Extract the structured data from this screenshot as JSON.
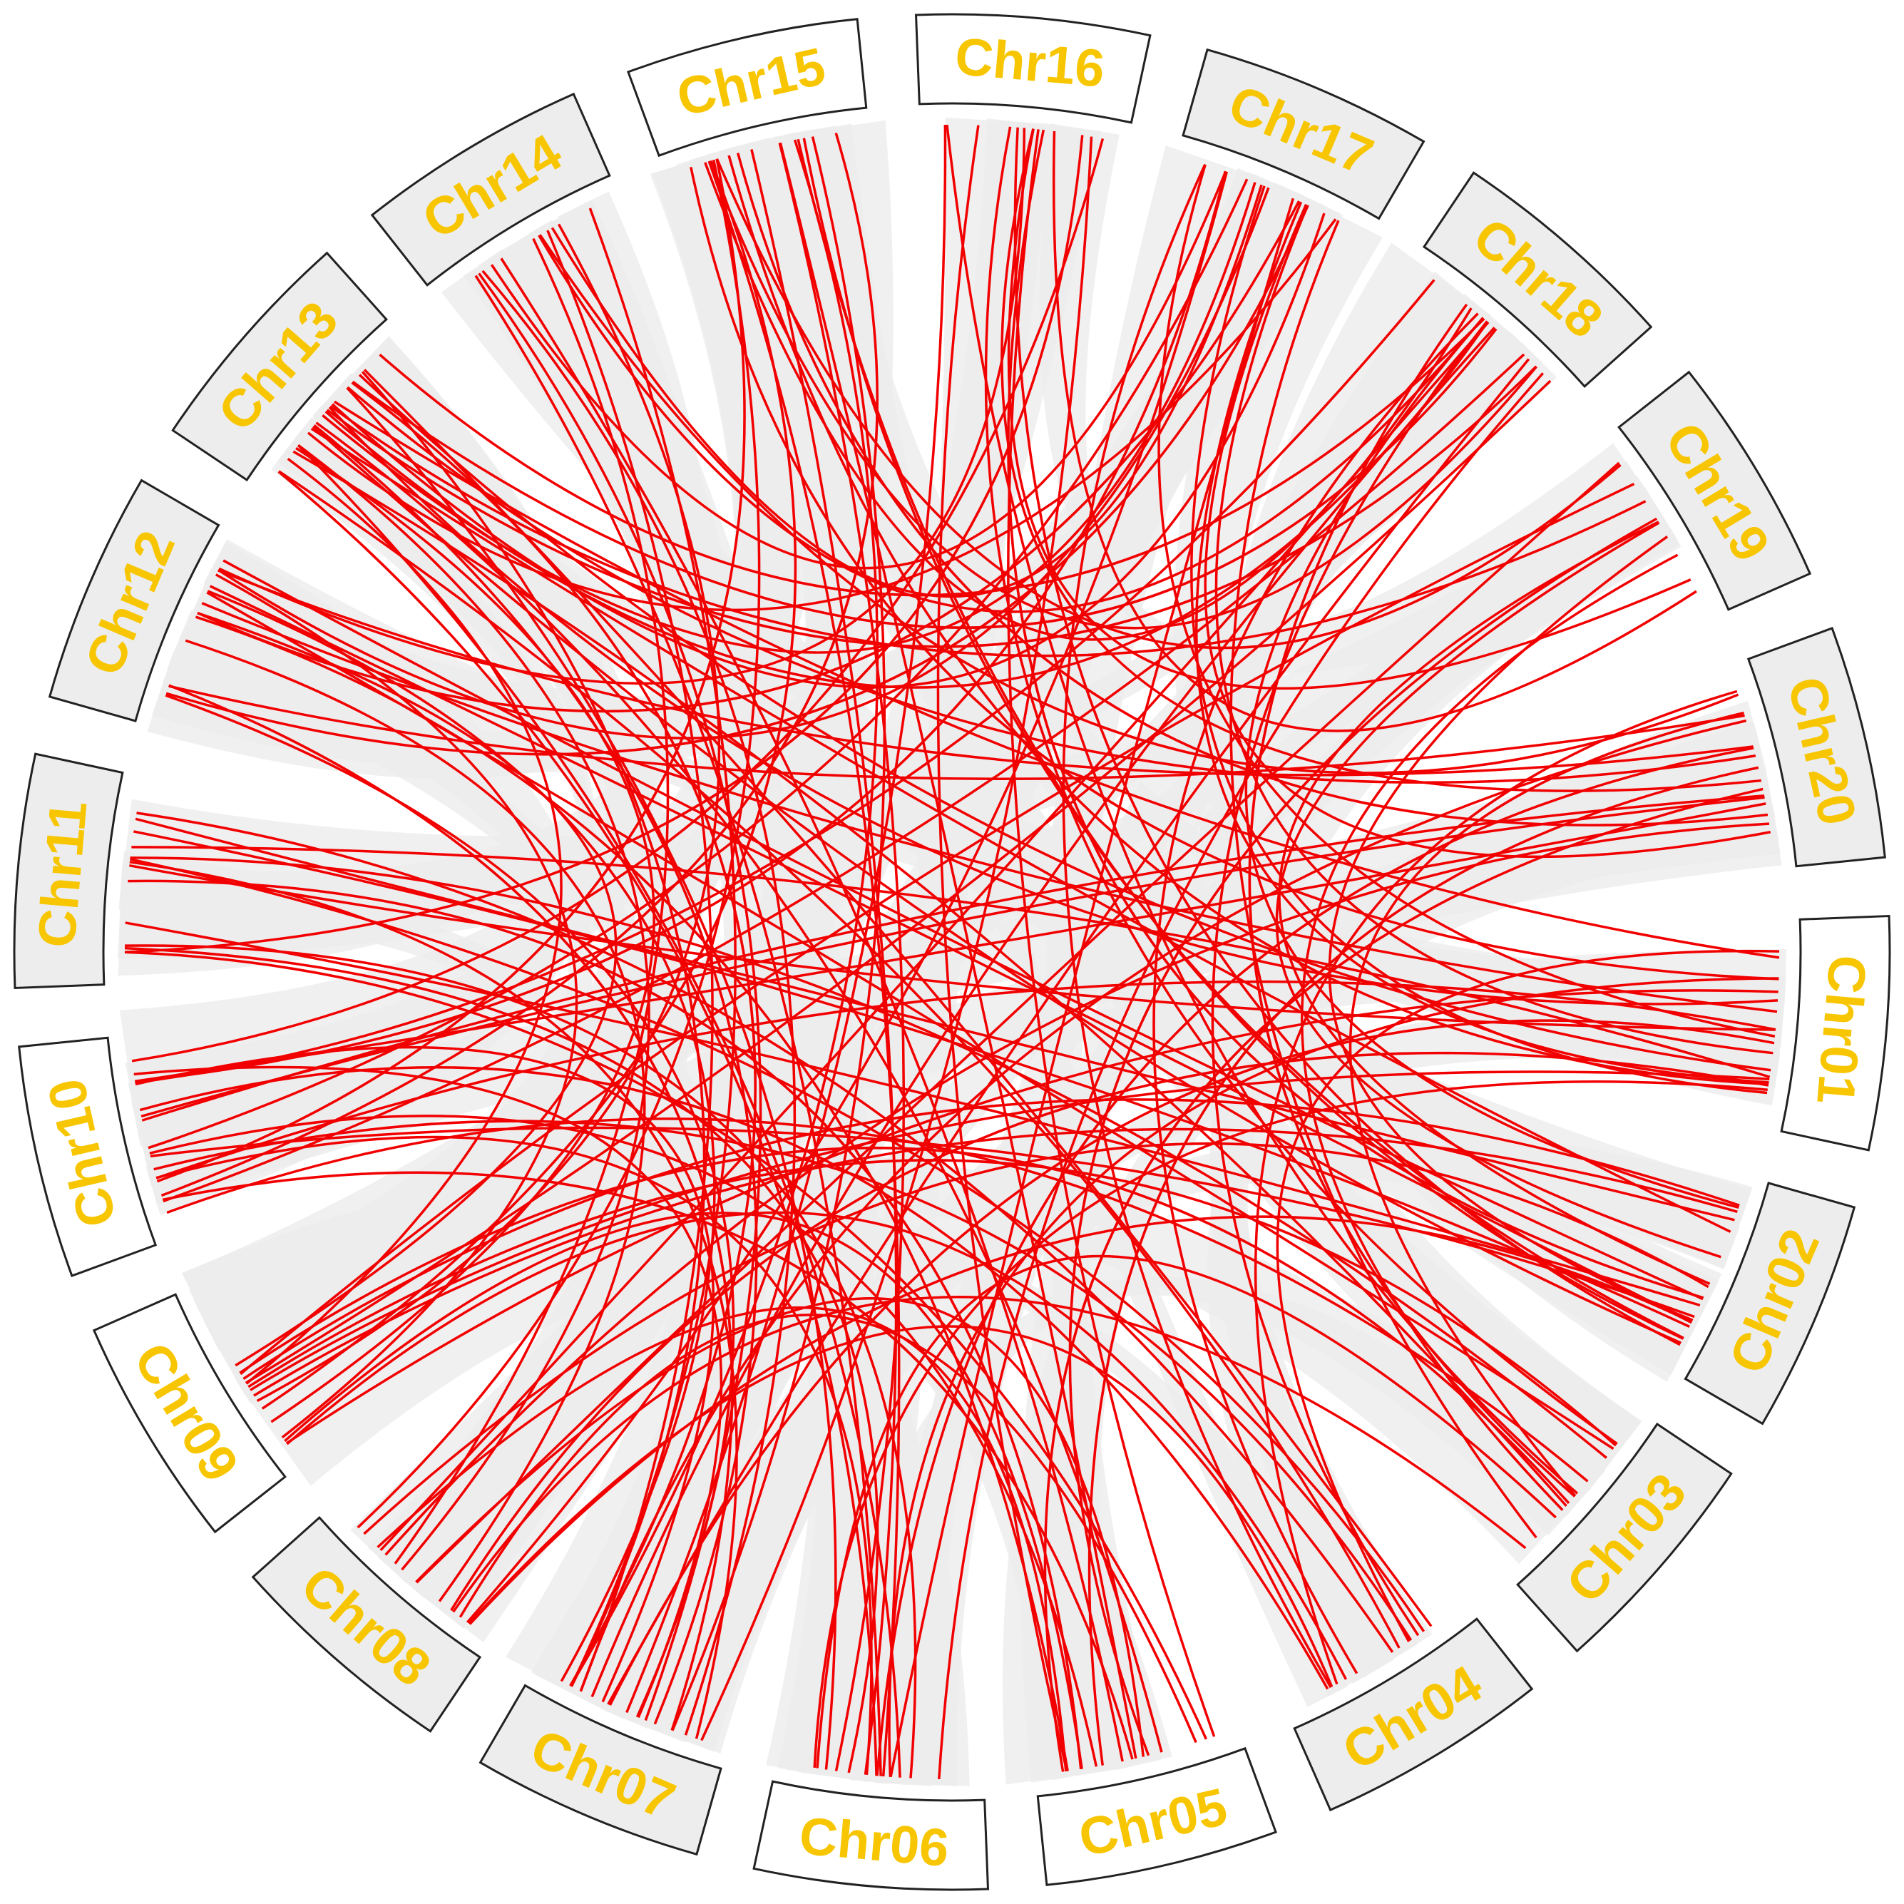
{
  "chromosomes": [
    "Chr16",
    "Chr17",
    "Chr18",
    "Chr19",
    "Chr20",
    "Chr01",
    "Chr02",
    "Chr03",
    "Chr04",
    "Chr05",
    "Chr06",
    "Chr07",
    "Chr08",
    "Chr09",
    "Chr10",
    "Chr11",
    "Chr12",
    "Chr13",
    "Chr14",
    "Chr15"
  ]
}
